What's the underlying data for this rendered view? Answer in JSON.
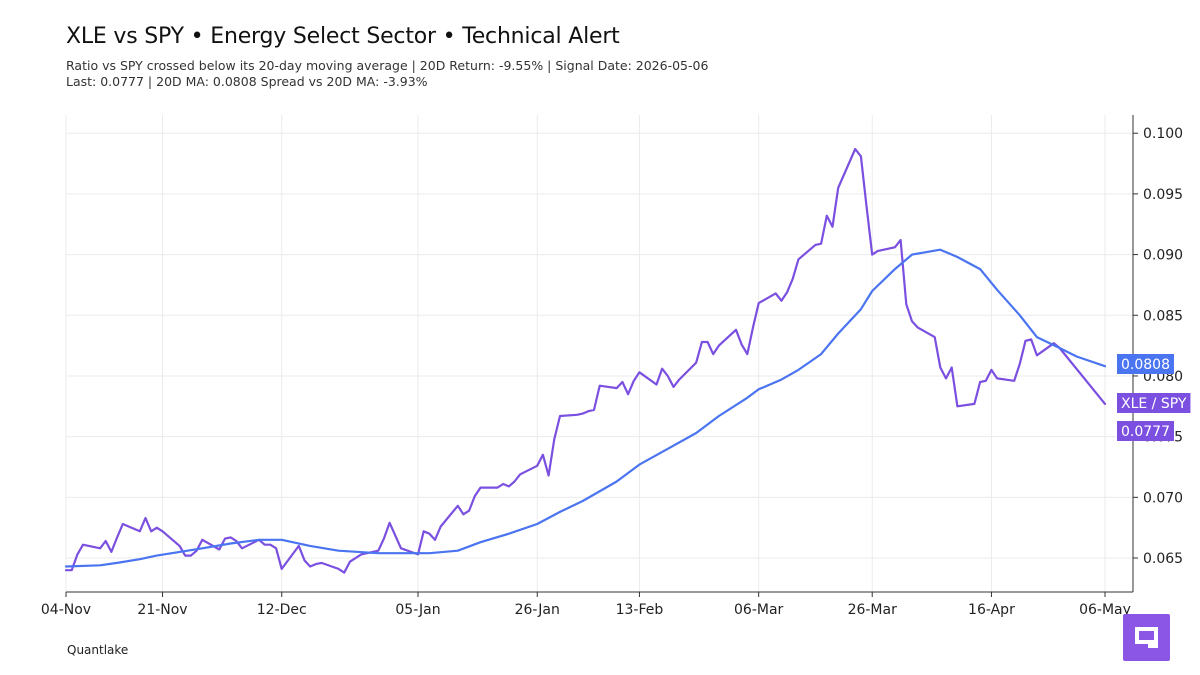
{
  "header": {
    "title": "XLE vs SPY • Energy Select Sector • Technical Alert",
    "subtitle_line1": "Ratio vs SPY crossed below its 20-day moving average | 20D Return: -9.55% | Signal Date: 2026-05-06",
    "subtitle_line2": "Last: 0.0777 | 20D MA: 0.0808 Spread vs 20D MA: -3.93%"
  },
  "footer": {
    "brand": "Quantlake"
  },
  "colors": {
    "ratio": "#7b4fe0",
    "ma": "#4a74f0",
    "ratio_tag": "#7b4fe0",
    "ma_tag": "#4a74f0",
    "grid": "#ebebeb",
    "logo": "#8b55e6"
  },
  "chart_data": {
    "type": "line",
    "x_start": "2025-11-04",
    "x_end": "2026-05-06",
    "x_ticks": [
      {
        "label": "04-Nov",
        "date": "2025-11-04"
      },
      {
        "label": "21-Nov",
        "date": "2025-11-21"
      },
      {
        "label": "12-Dec",
        "date": "2025-12-12"
      },
      {
        "label": "05-Jan",
        "date": "2026-01-05"
      },
      {
        "label": "26-Jan",
        "date": "2026-01-26"
      },
      {
        "label": "13-Feb",
        "date": "2026-02-13"
      },
      {
        "label": "06-Mar",
        "date": "2026-03-06"
      },
      {
        "label": "26-Mar",
        "date": "2026-03-26"
      },
      {
        "label": "16-Apr",
        "date": "2026-04-16"
      },
      {
        "label": "06-May",
        "date": "2026-05-06"
      }
    ],
    "y_ticks": [
      0.065,
      0.07,
      0.075,
      0.08,
      0.085,
      0.09,
      0.095,
      0.1
    ],
    "y_tick_labels": [
      "0.065",
      "0.070",
      "0.075",
      "0.080",
      "0.085",
      "0.090",
      "0.095",
      "0.100"
    ],
    "ylim": [
      0.0622,
      0.1015
    ],
    "grid": true,
    "series": [
      {
        "name": "XLE / SPY",
        "role": "ratio",
        "points": [
          [
            "2025-11-04",
            0.064
          ],
          [
            "2025-11-05",
            0.064
          ],
          [
            "2025-11-06",
            0.0653
          ],
          [
            "2025-11-07",
            0.0661
          ],
          [
            "2025-11-10",
            0.0658
          ],
          [
            "2025-11-11",
            0.0664
          ],
          [
            "2025-11-12",
            0.0655
          ],
          [
            "2025-11-13",
            0.0667
          ],
          [
            "2025-11-14",
            0.0678
          ],
          [
            "2025-11-17",
            0.0672
          ],
          [
            "2025-11-18",
            0.0683
          ],
          [
            "2025-11-19",
            0.0672
          ],
          [
            "2025-11-20",
            0.0675
          ],
          [
            "2025-11-21",
            0.0672
          ],
          [
            "2025-11-24",
            0.066
          ],
          [
            "2025-11-25",
            0.0652
          ],
          [
            "2025-11-26",
            0.0652
          ],
          [
            "2025-11-27",
            0.0656
          ],
          [
            "2025-11-28",
            0.0665
          ],
          [
            "2025-12-01",
            0.0657
          ],
          [
            "2025-12-02",
            0.0666
          ],
          [
            "2025-12-03",
            0.0667
          ],
          [
            "2025-12-04",
            0.0664
          ],
          [
            "2025-12-05",
            0.0658
          ],
          [
            "2025-12-08",
            0.0665
          ],
          [
            "2025-12-09",
            0.0661
          ],
          [
            "2025-12-10",
            0.0661
          ],
          [
            "2025-12-11",
            0.0658
          ],
          [
            "2025-12-12",
            0.0641
          ],
          [
            "2025-12-15",
            0.066
          ],
          [
            "2025-12-16",
            0.0648
          ],
          [
            "2025-12-17",
            0.0643
          ],
          [
            "2025-12-18",
            0.0645
          ],
          [
            "2025-12-19",
            0.0646
          ],
          [
            "2025-12-22",
            0.0641
          ],
          [
            "2025-12-23",
            0.0638
          ],
          [
            "2025-12-24",
            0.0647
          ],
          [
            "2025-12-26",
            0.0653
          ],
          [
            "2025-12-29",
            0.0656
          ],
          [
            "2025-12-30",
            0.0666
          ],
          [
            "2025-12-31",
            0.0679
          ],
          [
            "2026-01-02",
            0.0658
          ],
          [
            "2026-01-05",
            0.0653
          ],
          [
            "2026-01-06",
            0.0672
          ],
          [
            "2026-01-07",
            0.067
          ],
          [
            "2026-01-08",
            0.0665
          ],
          [
            "2026-01-09",
            0.0676
          ],
          [
            "2026-01-12",
            0.0693
          ],
          [
            "2026-01-13",
            0.0686
          ],
          [
            "2026-01-14",
            0.0689
          ],
          [
            "2026-01-15",
            0.0701
          ],
          [
            "2026-01-16",
            0.0708
          ],
          [
            "2026-01-19",
            0.0708
          ],
          [
            "2026-01-20",
            0.0711
          ],
          [
            "2026-01-21",
            0.0709
          ],
          [
            "2026-01-22",
            0.0713
          ],
          [
            "2026-01-23",
            0.0719
          ],
          [
            "2026-01-26",
            0.0726
          ],
          [
            "2026-01-27",
            0.0735
          ],
          [
            "2026-01-28",
            0.0718
          ],
          [
            "2026-01-29",
            0.0748
          ],
          [
            "2026-01-30",
            0.0767
          ],
          [
            "2026-02-02",
            0.0768
          ],
          [
            "2026-02-03",
            0.0769
          ],
          [
            "2026-02-04",
            0.0771
          ],
          [
            "2026-02-05",
            0.0772
          ],
          [
            "2026-02-06",
            0.0792
          ],
          [
            "2026-02-09",
            0.079
          ],
          [
            "2026-02-10",
            0.0795
          ],
          [
            "2026-02-11",
            0.0785
          ],
          [
            "2026-02-12",
            0.0796
          ],
          [
            "2026-02-13",
            0.0803
          ],
          [
            "2026-02-16",
            0.0793
          ],
          [
            "2026-02-17",
            0.0806
          ],
          [
            "2026-02-18",
            0.08
          ],
          [
            "2026-02-19",
            0.0791
          ],
          [
            "2026-02-20",
            0.0797
          ],
          [
            "2026-02-23",
            0.0811
          ],
          [
            "2026-02-24",
            0.0828
          ],
          [
            "2026-02-25",
            0.0828
          ],
          [
            "2026-02-26",
            0.0818
          ],
          [
            "2026-02-27",
            0.0825
          ],
          [
            "2026-03-02",
            0.0838
          ],
          [
            "2026-03-03",
            0.0826
          ],
          [
            "2026-03-04",
            0.0818
          ],
          [
            "2026-03-05",
            0.084
          ],
          [
            "2026-03-06",
            0.086
          ],
          [
            "2026-03-09",
            0.0868
          ],
          [
            "2026-03-10",
            0.0862
          ],
          [
            "2026-03-11",
            0.0869
          ],
          [
            "2026-03-12",
            0.088
          ],
          [
            "2026-03-13",
            0.0896
          ],
          [
            "2026-03-16",
            0.0908
          ],
          [
            "2026-03-17",
            0.0909
          ],
          [
            "2026-03-18",
            0.0932
          ],
          [
            "2026-03-19",
            0.0923
          ],
          [
            "2026-03-20",
            0.0955
          ],
          [
            "2026-03-23",
            0.0987
          ],
          [
            "2026-03-24",
            0.0981
          ],
          [
            "2026-03-25",
            0.094
          ],
          [
            "2026-03-26",
            0.09
          ],
          [
            "2026-03-27",
            0.0903
          ],
          [
            "2026-03-30",
            0.0906
          ],
          [
            "2026-03-31",
            0.0912
          ],
          [
            "2026-04-01",
            0.0859
          ],
          [
            "2026-04-02",
            0.0845
          ],
          [
            "2026-04-03",
            0.084
          ],
          [
            "2026-04-06",
            0.0832
          ],
          [
            "2026-04-07",
            0.0807
          ],
          [
            "2026-04-08",
            0.0798
          ],
          [
            "2026-04-09",
            0.0807
          ],
          [
            "2026-04-10",
            0.0775
          ],
          [
            "2026-04-13",
            0.0777
          ],
          [
            "2026-04-14",
            0.0795
          ],
          [
            "2026-04-15",
            0.0796
          ],
          [
            "2026-04-16",
            0.0805
          ],
          [
            "2026-04-17",
            0.0798
          ],
          [
            "2026-04-20",
            0.0796
          ],
          [
            "2026-04-21",
            0.081
          ],
          [
            "2026-04-22",
            0.0829
          ],
          [
            "2026-04-23",
            0.083
          ],
          [
            "2026-04-24",
            0.0817
          ],
          [
            "2026-04-27",
            0.0827
          ],
          [
            "2026-04-28",
            0.0823
          ],
          [
            "2026-05-06",
            0.0777
          ]
        ]
      },
      {
        "name": "",
        "role": "ma",
        "points": [
          [
            "2025-11-04",
            0.0643
          ],
          [
            "2025-11-10",
            0.0644
          ],
          [
            "2025-11-13",
            0.0646
          ],
          [
            "2025-11-17",
            0.0649
          ],
          [
            "2025-11-20",
            0.0652
          ],
          [
            "2025-11-24",
            0.0655
          ],
          [
            "2025-11-28",
            0.0658
          ],
          [
            "2025-12-03",
            0.0662
          ],
          [
            "2025-12-08",
            0.0665
          ],
          [
            "2025-12-12",
            0.0665
          ],
          [
            "2025-12-17",
            0.066
          ],
          [
            "2025-12-22",
            0.0656
          ],
          [
            "2025-12-29",
            0.0654
          ],
          [
            "2026-01-02",
            0.0654
          ],
          [
            "2026-01-07",
            0.0654
          ],
          [
            "2026-01-12",
            0.0656
          ],
          [
            "2026-01-16",
            0.0663
          ],
          [
            "2026-01-21",
            0.067
          ],
          [
            "2026-01-26",
            0.0678
          ],
          [
            "2026-01-30",
            0.0688
          ],
          [
            "2026-02-03",
            0.0697
          ],
          [
            "2026-02-09",
            0.0713
          ],
          [
            "2026-02-13",
            0.0727
          ],
          [
            "2026-02-18",
            0.074
          ],
          [
            "2026-02-23",
            0.0753
          ],
          [
            "2026-02-27",
            0.0767
          ],
          [
            "2026-03-04",
            0.0782
          ],
          [
            "2026-03-06",
            0.0789
          ],
          [
            "2026-03-10",
            0.0797
          ],
          [
            "2026-03-13",
            0.0805
          ],
          [
            "2026-03-17",
            0.0818
          ],
          [
            "2026-03-20",
            0.0835
          ],
          [
            "2026-03-24",
            0.0855
          ],
          [
            "2026-03-26",
            0.087
          ],
          [
            "2026-03-30",
            0.0888
          ],
          [
            "2026-04-02",
            0.09
          ],
          [
            "2026-04-07",
            0.0904
          ],
          [
            "2026-04-10",
            0.0898
          ],
          [
            "2026-04-14",
            0.0888
          ],
          [
            "2026-04-17",
            0.0871
          ],
          [
            "2026-04-21",
            0.085
          ],
          [
            "2026-04-24",
            0.0832
          ],
          [
            "2026-04-28",
            0.0823
          ],
          [
            "2026-05-01",
            0.0816
          ],
          [
            "2026-05-06",
            0.0808
          ]
        ]
      }
    ],
    "last_value_tags": {
      "ma": "0.0808",
      "series_label": "XLE / SPY",
      "ratio": "0.0777"
    }
  }
}
